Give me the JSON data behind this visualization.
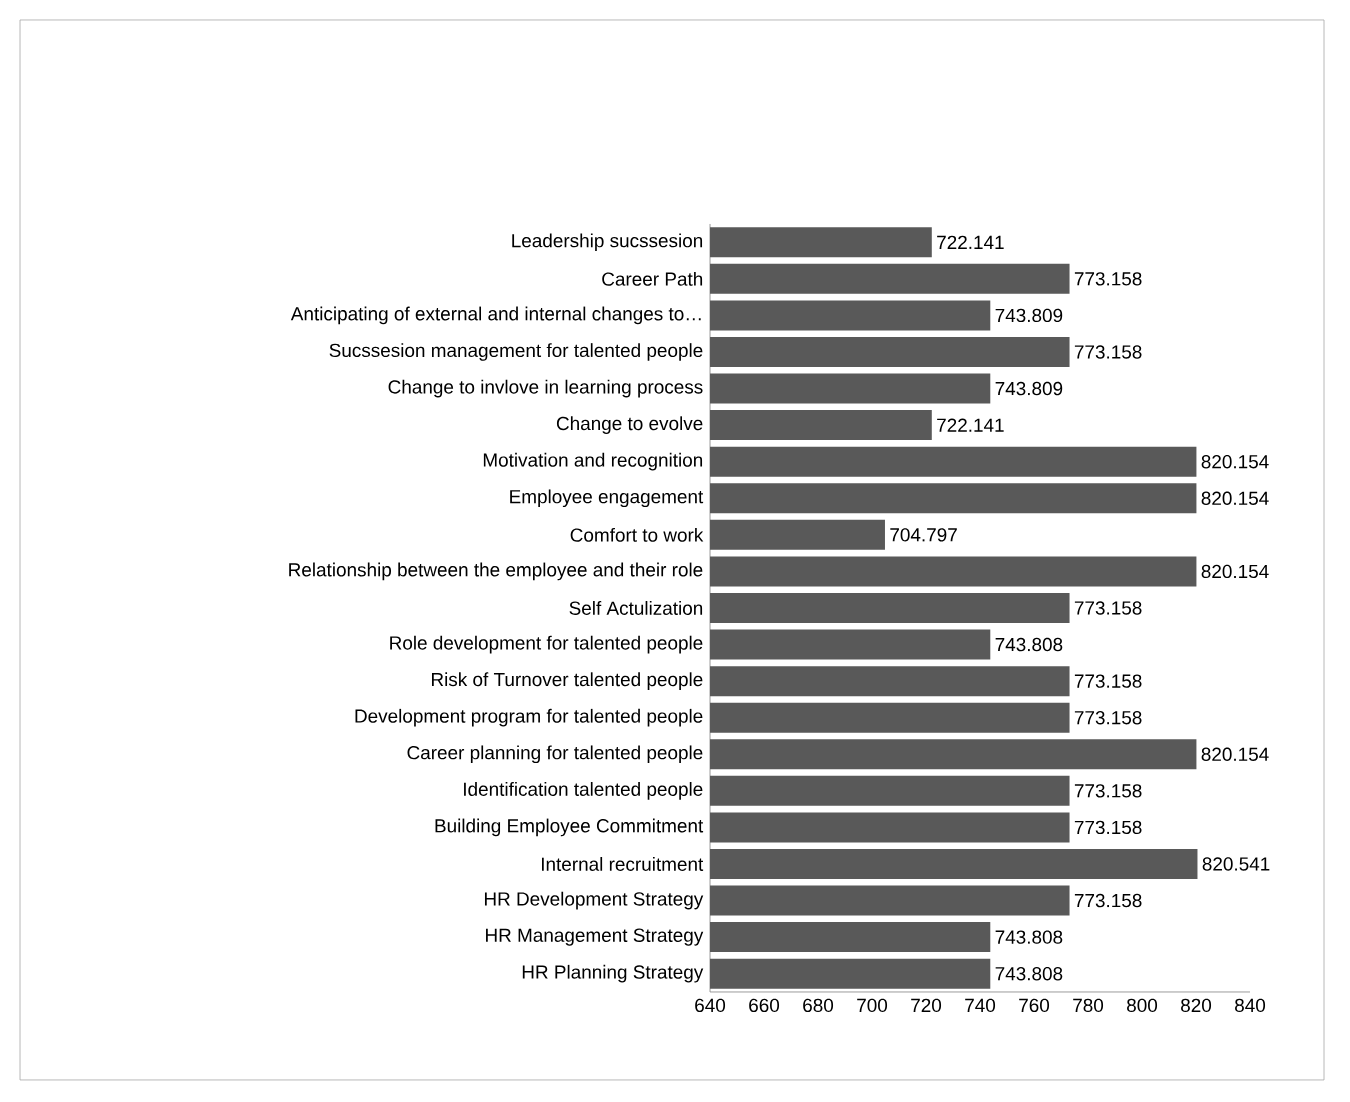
{
  "chart_data": {
    "type": "bar",
    "orientation": "horizontal",
    "color": "#595959",
    "data_labels": true,
    "categories": [
      "Leadership sucssesion",
      "Career Path",
      "Anticipating of external and internal changes to…",
      "Sucssesion management for talented people",
      "Change to invlove in learning process",
      "Change to evolve",
      "Motivation and recognition",
      "Employee engagement",
      "Comfort to work",
      "Relationship between the employee and their role",
      "Self Actulization",
      "Role development for talented people",
      "Risk of Turnover talented people",
      "Development program for talented people",
      "Career planning for talented people",
      "Identification talented people",
      "Building Employee Commitment",
      "Internal recruitment",
      "HR Development Strategy",
      "HR Management Strategy",
      "HR Planning Strategy"
    ],
    "values": [
      722.141,
      773.158,
      743.809,
      773.158,
      743.809,
      722.141,
      820.154,
      820.154,
      704.797,
      820.154,
      773.158,
      743.808,
      773.158,
      773.158,
      820.154,
      773.158,
      773.158,
      820.541,
      773.158,
      743.808,
      743.808
    ],
    "xlim": [
      640,
      840
    ],
    "xticks": [
      640,
      660,
      680,
      700,
      720,
      740,
      760,
      780,
      800,
      820,
      840
    ],
    "grid": false
  }
}
